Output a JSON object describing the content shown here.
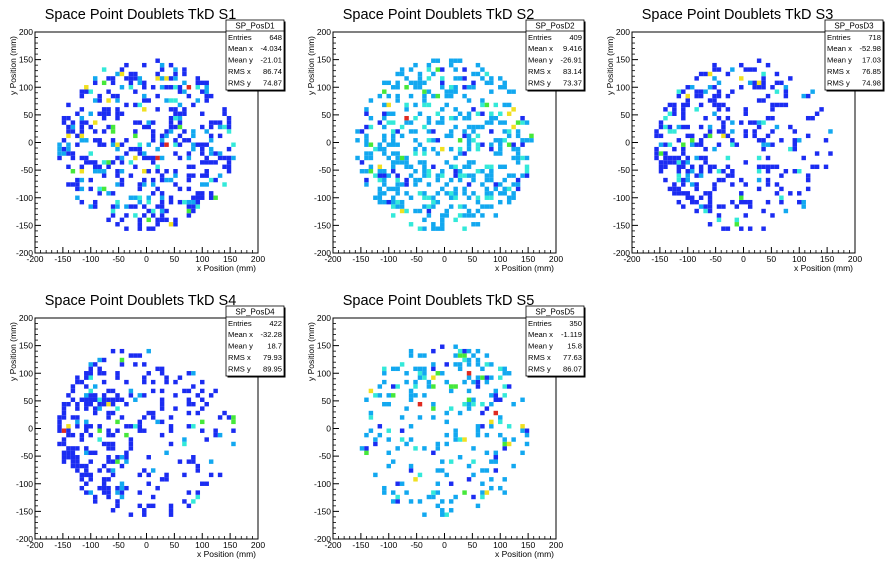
{
  "chart_data": [
    {
      "type": "heatmap",
      "title": "Space Point Doublets TkD S1",
      "xlabel": "x Position (mm)",
      "ylabel": "y Position (mm)",
      "xlim": [
        -200,
        200
      ],
      "ylim": [
        -200,
        200
      ],
      "x_ticks": [
        -200,
        -150,
        -100,
        -50,
        0,
        50,
        100,
        150,
        200
      ],
      "y_ticks": [
        -200,
        -150,
        -100,
        -50,
        0,
        50,
        100,
        150,
        200
      ],
      "stats": {
        "name": "SP_PosD1",
        "rows": [
          {
            "label": "Entries",
            "value": "648"
          },
          {
            "label": "Mean x",
            "value": "-4.034"
          },
          {
            "label": "Mean y",
            "value": "-21.01"
          },
          {
            "label": "RMS x",
            "value": "86.74"
          },
          {
            "label": "RMS y",
            "value": "74.87"
          }
        ]
      }
    },
    {
      "type": "heatmap",
      "title": "Space Point Doublets TkD S2",
      "xlabel": "x Position (mm)",
      "ylabel": "y Position (mm)",
      "xlim": [
        -200,
        200
      ],
      "ylim": [
        -200,
        200
      ],
      "x_ticks": [
        -200,
        -150,
        -100,
        -50,
        0,
        50,
        100,
        150,
        200
      ],
      "y_ticks": [
        -200,
        -150,
        -100,
        -50,
        0,
        50,
        100,
        150,
        200
      ],
      "stats": {
        "name": "SP_PosD2",
        "rows": [
          {
            "label": "Entries",
            "value": "409"
          },
          {
            "label": "Mean x",
            "value": "9.416"
          },
          {
            "label": "Mean y",
            "value": "-26.91"
          },
          {
            "label": "RMS x",
            "value": "83.14"
          },
          {
            "label": "RMS y",
            "value": "73.37"
          }
        ]
      }
    },
    {
      "type": "heatmap",
      "title": "Space Point Doublets TkD S3",
      "xlabel": "x Position (mm)",
      "ylabel": "y Position (mm)",
      "xlim": [
        -200,
        200
      ],
      "ylim": [
        -200,
        200
      ],
      "x_ticks": [
        -200,
        -150,
        -100,
        -50,
        0,
        50,
        100,
        150,
        200
      ],
      "y_ticks": [
        -200,
        -150,
        -100,
        -50,
        0,
        50,
        100,
        150,
        200
      ],
      "stats": {
        "name": "SP_PosD3",
        "rows": [
          {
            "label": "Entries",
            "value": "718"
          },
          {
            "label": "Mean x",
            "value": "-52.98"
          },
          {
            "label": "Mean y",
            "value": "17.03"
          },
          {
            "label": "RMS x",
            "value": "76.85"
          },
          {
            "label": "RMS y",
            "value": "74.98"
          }
        ]
      }
    },
    {
      "type": "heatmap",
      "title": "Space Point Doublets TkD S4",
      "xlabel": "x Position (mm)",
      "ylabel": "y Position (mm)",
      "xlim": [
        -200,
        200
      ],
      "ylim": [
        -200,
        200
      ],
      "x_ticks": [
        -200,
        -150,
        -100,
        -50,
        0,
        50,
        100,
        150,
        200
      ],
      "y_ticks": [
        -200,
        -150,
        -100,
        -50,
        0,
        50,
        100,
        150,
        200
      ],
      "stats": {
        "name": "SP_PosD4",
        "rows": [
          {
            "label": "Entries",
            "value": "422"
          },
          {
            "label": "Mean x",
            "value": "-32.28"
          },
          {
            "label": "Mean y",
            "value": "18.7"
          },
          {
            "label": "RMS x",
            "value": "79.93"
          },
          {
            "label": "RMS y",
            "value": "89.95"
          }
        ]
      }
    },
    {
      "type": "heatmap",
      "title": "Space Point Doublets TkD S5",
      "xlabel": "x Position (mm)",
      "ylabel": "y Position (mm)",
      "xlim": [
        -200,
        200
      ],
      "ylim": [
        -200,
        200
      ],
      "x_ticks": [
        -200,
        -150,
        -100,
        -50,
        0,
        50,
        100,
        150,
        200
      ],
      "y_ticks": [
        -200,
        -150,
        -100,
        -50,
        0,
        50,
        100,
        150,
        200
      ],
      "stats": {
        "name": "SP_PosD5",
        "rows": [
          {
            "label": "Entries",
            "value": "350"
          },
          {
            "label": "Mean x",
            "value": "-1.119"
          },
          {
            "label": "Mean y",
            "value": "15.8"
          },
          {
            "label": "RMS x",
            "value": "77.63"
          },
          {
            "label": "RMS y",
            "value": "86.07"
          }
        ]
      }
    }
  ]
}
